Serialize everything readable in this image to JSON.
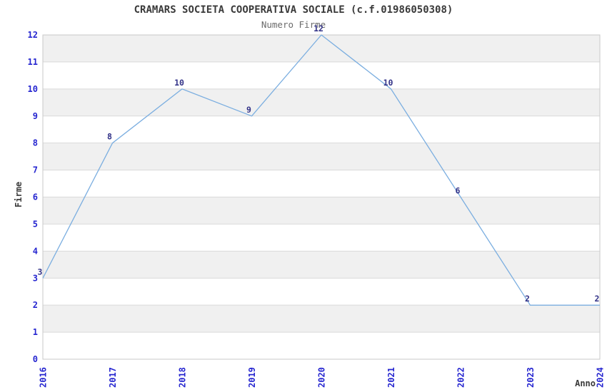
{
  "header": {
    "title": "CRAMARS SOCIETA COOPERATIVA SOCIALE (c.f.01986050308)",
    "subtitle": "Numero Firme"
  },
  "chart_data": {
    "type": "line",
    "title": "CRAMARS SOCIETA COOPERATIVA SOCIALE (c.f.01986050308)",
    "subtitle": "Numero Firme",
    "xlabel": "Anno",
    "ylabel": "Firme",
    "categories": [
      "2016",
      "2017",
      "2018",
      "2019",
      "2020",
      "2021",
      "2022",
      "2023",
      "2024"
    ],
    "values": [
      3,
      8,
      10,
      9,
      12,
      10,
      6,
      2,
      2
    ],
    "data_labels": [
      "3",
      "8",
      "10",
      "9",
      "12",
      "10",
      "6",
      "2",
      "2"
    ],
    "ylim": [
      0,
      12
    ],
    "yticks": [
      0,
      1,
      2,
      3,
      4,
      5,
      6,
      7,
      8,
      9,
      10,
      11,
      12
    ],
    "grid": "horizontal-bands",
    "legend": "none"
  },
  "colors": {
    "line": "#7BAEE0",
    "band": "#F0F0F0",
    "gridline": "#D9D9D9",
    "border": "#C9C9C9",
    "tick_label": "#2626D0",
    "data_label": "#333388",
    "title": "#3A3A3A",
    "subtitle": "#6B6B6B",
    "axis_title": "#3A3A3A",
    "background": "#FFFFFF"
  }
}
